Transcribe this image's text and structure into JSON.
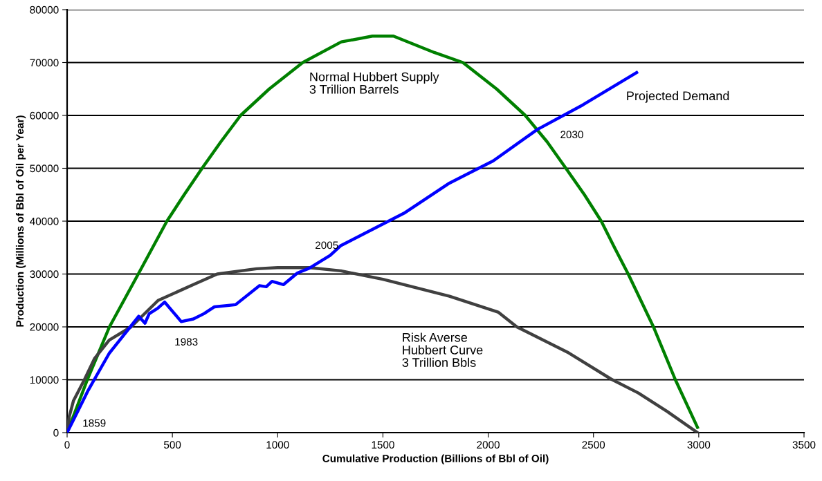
{
  "chart_data": {
    "type": "line",
    "xlabel": "Cumulative Production (Billions of Bbl of Oil)",
    "ylabel": "Production (Millions of Bbl of Oil per Year)",
    "xlim": [
      0,
      3500
    ],
    "xticks": [
      0,
      500,
      1000,
      1500,
      2000,
      2500,
      3000,
      3500
    ],
    "ylim": [
      0,
      80000
    ],
    "yticks": [
      0,
      10000,
      20000,
      30000,
      40000,
      50000,
      60000,
      70000,
      80000
    ],
    "grid": "y",
    "legend": false,
    "marker": "none",
    "line_style": "solid",
    "series": [
      {
        "name": "Normal Hubbert Supply\n3 Trillion Barrels",
        "color": "#008000",
        "x": [
          0,
          96,
          201,
          338,
          474,
          556,
          641,
          730,
          824,
          960,
          1119,
          1302,
          1450,
          1550,
          1744,
          1880,
          2040,
          2176,
          2280,
          2369,
          2457,
          2537,
          2600,
          2665,
          2785,
          2889,
          2994
        ],
        "values": [
          0,
          10000,
          20000,
          30000,
          40000,
          45000,
          50000,
          55000,
          60000,
          65000,
          70000,
          73900,
          75000,
          75000,
          71900,
          70000,
          65000,
          60000,
          55000,
          50000,
          45000,
          40000,
          35000,
          30000,
          20000,
          10000,
          1000
        ]
      },
      {
        "name": "Risk Averse\nHubbert Curve\n3 Trillion Bbls",
        "color": "#404040",
        "x": [
          0,
          10,
          30,
          82,
          130,
          200,
          304,
          432,
          600,
          713,
          900,
          1000,
          1150,
          1300,
          1500,
          1816,
          2047,
          2136,
          2377,
          2585,
          2713,
          2850,
          2994
        ],
        "values": [
          0,
          3000,
          6000,
          10000,
          14000,
          17500,
          20000,
          25000,
          28000,
          30000,
          31000,
          31200,
          31200,
          30600,
          29000,
          25800,
          22800,
          20000,
          15200,
          10100,
          7500,
          4000,
          0
        ]
      },
      {
        "name": "Projected Demand",
        "color": "#0000ff",
        "x": [
          0,
          50,
          100,
          150,
          200,
          250,
          300,
          340,
          370,
          390,
          430,
          463,
          542,
          600,
          650,
          700,
          800,
          914,
          946,
          973,
          1028,
          1094,
          1150,
          1249,
          1301,
          1600,
          1816,
          2024,
          2232,
          2450,
          2705
        ],
        "values": [
          0,
          4000,
          8000,
          11500,
          15000,
          17500,
          20000,
          22000,
          20700,
          22500,
          23500,
          24700,
          21000,
          21500,
          22500,
          23800,
          24200,
          27800,
          27600,
          28600,
          28000,
          30200,
          31100,
          33500,
          35400,
          41500,
          47200,
          51400,
          57300,
          62000,
          68100
        ]
      }
    ],
    "annotations": [
      {
        "text": "1859",
        "x": 0,
        "y": 0
      },
      {
        "text": "1983",
        "x": 542,
        "y": 21000
      },
      {
        "text": "2005",
        "x": 1150,
        "y": 31100
      },
      {
        "text": "2030",
        "x": 2232,
        "y": 57300
      }
    ]
  }
}
